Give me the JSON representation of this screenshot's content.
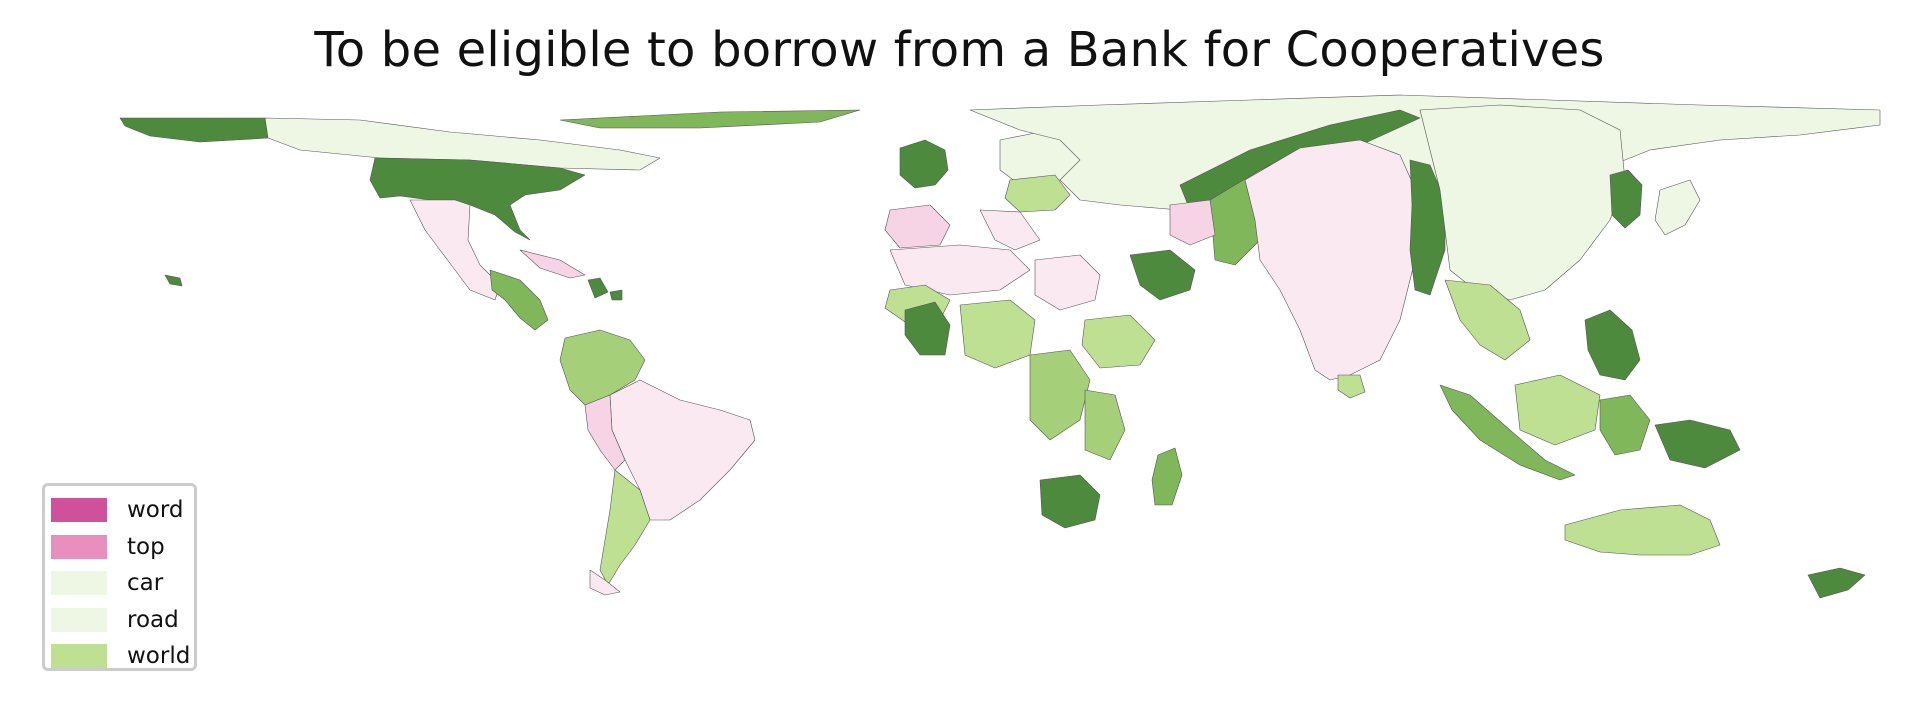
{
  "title": "To be eligible to borrow from a Bank for Cooperatives",
  "legend": {
    "items": [
      {
        "label": "word",
        "color": "#d0519b"
      },
      {
        "label": "top",
        "color": "#e88fc0"
      },
      {
        "label": "car",
        "color": "#eef6e4"
      },
      {
        "label": "road",
        "color": "#eef6e4"
      },
      {
        "label": "world",
        "color": "#bde093"
      }
    ]
  },
  "colors": {
    "dark_green": "#4e8a3e",
    "mid_green": "#7fb75a",
    "light_green": "#bde093",
    "pale_green": "#eef6e4",
    "pale_pink": "#fbe9f2",
    "light_pink": "#f7d3e6",
    "mid_pink": "#e88fc0",
    "border": "#555555"
  }
}
